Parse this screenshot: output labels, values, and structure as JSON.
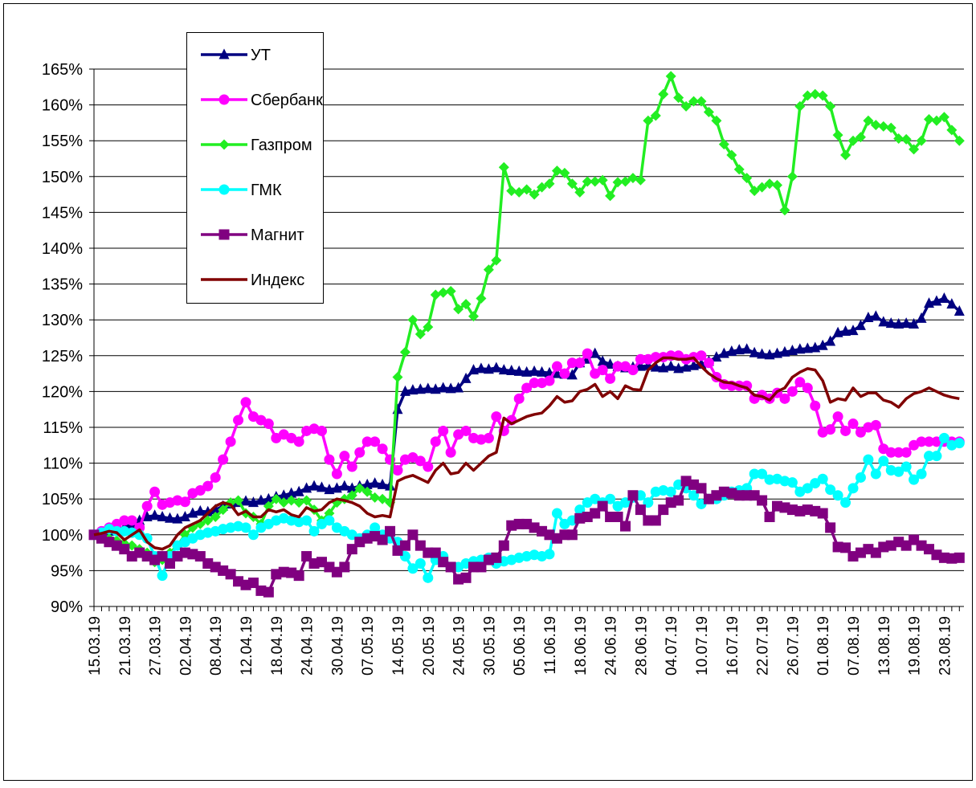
{
  "chart_data": {
    "type": "line",
    "categories": [
      "15.03.19",
      null,
      null,
      null,
      "21.03.19",
      null,
      null,
      null,
      "27.03.19",
      null,
      null,
      null,
      "02.04.19",
      null,
      null,
      null,
      "08.04.19",
      null,
      null,
      null,
      "12.04.19",
      null,
      null,
      null,
      "18.04.19",
      null,
      null,
      null,
      "24.04.19",
      null,
      null,
      null,
      "30.04.19",
      null,
      null,
      null,
      "07.05.19",
      null,
      null,
      null,
      "14.05.19",
      null,
      null,
      null,
      "20.05.19",
      null,
      null,
      null,
      "24.05.19",
      null,
      null,
      null,
      "30.05.19",
      null,
      null,
      null,
      "05.06.19",
      null,
      null,
      null,
      "11.06.19",
      null,
      null,
      null,
      "18.06.19",
      null,
      null,
      null,
      "24.06.19",
      null,
      null,
      null,
      "28.06.19",
      null,
      null,
      null,
      "04.07.19",
      null,
      null,
      null,
      "10.07.19",
      null,
      null,
      null,
      "16.07.19",
      null,
      null,
      null,
      "22.07.19",
      null,
      null,
      null,
      "26.07.19",
      null,
      null,
      null,
      "01.08.19",
      null,
      null,
      null,
      "07.08.19",
      null,
      null,
      null,
      "13.08.19",
      null,
      null,
      null,
      "19.08.19",
      null,
      null,
      null,
      "23.08.19",
      null,
      null
    ],
    "series": [
      {
        "name": "УТ",
        "color": "#000080",
        "marker": "triangle",
        "values": [
          100,
          100.2,
          100.5,
          100.8,
          101,
          101.5,
          102,
          102.5,
          102.7,
          102.5,
          102.3,
          102.2,
          102.5,
          103,
          103.3,
          103.2,
          103.5,
          104,
          104.3,
          104.5,
          104.7,
          104.5,
          104.8,
          105,
          105.3,
          105.5,
          105.8,
          106,
          106.5,
          106.8,
          106.6,
          106.3,
          106.5,
          106.8,
          106.5,
          106.8,
          107,
          107.2,
          107,
          106.8,
          117.5,
          120,
          120.2,
          120.3,
          120.4,
          120.3,
          120.5,
          120.4,
          120.5,
          121.8,
          123,
          123.2,
          123.1,
          123.3,
          123,
          122.9,
          122.8,
          122.7,
          122.8,
          122.7,
          122.6,
          122.5,
          122.4,
          122.3,
          124,
          124.5,
          125.3,
          124.2,
          123.8,
          123.5,
          123.3,
          123.4,
          123.5,
          123.6,
          123.4,
          123.3,
          123.5,
          123.2,
          123.4,
          123.6,
          123.8,
          124.2,
          124.8,
          125.3,
          125.6,
          125.8,
          125.9,
          125.4,
          125.2,
          125.1,
          125.3,
          125.5,
          125.7,
          125.9,
          126,
          126.1,
          126.4,
          127,
          128.2,
          128.4,
          128.5,
          129.2,
          130.3,
          130.5,
          129.7,
          129.5,
          129.4,
          129.5,
          129.4,
          130.2,
          132.3,
          132.6,
          133,
          132.2,
          131.2
        ]
      },
      {
        "name": "Сбербанк",
        "color": "#ff00ff",
        "marker": "circle",
        "values": [
          100,
          100.5,
          101,
          101.5,
          102,
          102,
          101,
          104,
          106,
          104.2,
          104.5,
          104.8,
          104.6,
          105.8,
          106.2,
          106.8,
          108,
          110.5,
          113,
          116,
          118.5,
          116.5,
          116,
          115.5,
          113.5,
          114,
          113.5,
          113,
          114.5,
          114.8,
          114.5,
          110.5,
          108.5,
          111,
          109.5,
          111.5,
          113,
          113,
          112,
          110.5,
          109,
          110.5,
          110.8,
          110.3,
          109.5,
          113,
          114.5,
          111.5,
          114,
          114.5,
          113.5,
          113.3,
          113.5,
          116.5,
          114.5,
          116,
          119,
          120.5,
          121.2,
          121.2,
          121.5,
          123.5,
          122.5,
          124,
          124,
          125.3,
          122.5,
          123,
          121.8,
          123.5,
          123.5,
          123,
          124.5,
          124.5,
          124.8,
          124.8,
          125,
          125,
          124.5,
          124.8,
          125,
          124,
          122,
          121,
          120.8,
          120.8,
          120.8,
          119,
          119.5,
          119,
          119.8,
          119,
          120,
          121.3,
          120.5,
          118,
          114.3,
          114.7,
          116.5,
          114.5,
          115.5,
          114.3,
          115,
          115.3,
          112,
          111.5,
          111.5,
          111.5,
          112.5,
          113,
          113,
          113,
          113,
          113,
          113
        ]
      },
      {
        "name": "Газпром",
        "color": "#22ee22",
        "marker": "diamond",
        "values": [
          100,
          99.7,
          99.5,
          99.2,
          98.8,
          98.5,
          98,
          97.5,
          96.2,
          96.5,
          97.5,
          98.5,
          100,
          101,
          101.5,
          102,
          102.5,
          103.5,
          104.5,
          104.8,
          103,
          102.5,
          101.5,
          104,
          105,
          104.5,
          104.8,
          104.5,
          104.8,
          103.5,
          102,
          103,
          104.5,
          105,
          105.5,
          106.5,
          106,
          105.2,
          105,
          104.5,
          122,
          125.5,
          130,
          128,
          129,
          133.5,
          133.8,
          134,
          131.5,
          132.2,
          130.5,
          133,
          137,
          138.3,
          151.3,
          148,
          147.8,
          148.2,
          147.5,
          148.5,
          149,
          150.8,
          150.5,
          149,
          147.8,
          149.3,
          149.3,
          149.5,
          147.3,
          149.2,
          149.3,
          149.8,
          149.5,
          157.8,
          158.5,
          161.5,
          164,
          161,
          159.8,
          160.5,
          160.5,
          159,
          157.8,
          154.5,
          153,
          151,
          149.8,
          148,
          148.5,
          149,
          148.8,
          145.3,
          150,
          159.8,
          161.3,
          161.5,
          161.3,
          159.8,
          155.8,
          153,
          155,
          155.5,
          157.8,
          157.2,
          157,
          156.8,
          155.3,
          155.2,
          153.8,
          155,
          158,
          157.8,
          158.3,
          156.5,
          155
        ]
      },
      {
        "name": "ГМК",
        "color": "#00ffff",
        "marker": "circle",
        "values": [
          100,
          100.3,
          100.8,
          100.5,
          100.5,
          100.3,
          100,
          99.5,
          97,
          94.3,
          97,
          98.5,
          99,
          99.5,
          100,
          100.3,
          100.5,
          100.8,
          101,
          101.2,
          101,
          100,
          101,
          101.5,
          102,
          102.3,
          102,
          101.8,
          102,
          100.5,
          101.5,
          102,
          101,
          100.5,
          100,
          99.5,
          100,
          101,
          100,
          99.5,
          99,
          97,
          95.3,
          96,
          94,
          96.5,
          97,
          95.5,
          95.5,
          96,
          96.3,
          96.5,
          96.8,
          96,
          96.3,
          96.5,
          96.8,
          97,
          97.2,
          97,
          97.3,
          103,
          101.5,
          102,
          103.5,
          104.5,
          105,
          104.5,
          105,
          104,
          104.5,
          105.2,
          105.5,
          104.5,
          106,
          106.2,
          106,
          107,
          106.5,
          105.5,
          104.3,
          105,
          105,
          105.5,
          106,
          106.2,
          106.5,
          108.5,
          108.5,
          107.7,
          107.8,
          107.5,
          107.3,
          106,
          106.5,
          107.2,
          107.8,
          106.3,
          105.5,
          104.5,
          106.5,
          108,
          110.5,
          108.5,
          110.3,
          109,
          108.8,
          109.5,
          107.7,
          108.5,
          111,
          111,
          113.5,
          112.5,
          112.8
        ]
      },
      {
        "name": "Магнит",
        "color": "#800080",
        "marker": "square",
        "values": [
          100,
          99.5,
          99,
          98.5,
          98,
          97,
          97.5,
          97,
          96.5,
          97,
          96,
          97,
          97.5,
          97.3,
          97,
          96,
          95.5,
          95,
          94.5,
          93.5,
          93,
          93.3,
          92.2,
          92,
          94.5,
          94.8,
          94.7,
          94.3,
          97,
          96,
          96.2,
          95.5,
          94.8,
          95.5,
          98,
          99,
          99.5,
          99.8,
          99.3,
          100.5,
          97.8,
          98.5,
          100,
          98.5,
          97.5,
          97.5,
          96.2,
          95.5,
          93.8,
          94,
          95.5,
          95.5,
          96.5,
          96.8,
          98.5,
          101.3,
          101.5,
          101.5,
          101,
          100.5,
          100,
          99.5,
          100,
          100,
          102.3,
          102.5,
          103,
          104,
          102.5,
          102.5,
          101.2,
          105.5,
          103.5,
          102,
          102,
          103.5,
          104.5,
          104.8,
          107.5,
          107,
          106.5,
          105,
          105.5,
          106,
          105.8,
          105.5,
          105.5,
          105.5,
          104.8,
          102.5,
          104,
          103.8,
          103.5,
          103.3,
          103.5,
          103.3,
          103,
          101,
          98.3,
          98.2,
          97,
          97.5,
          98,
          97.5,
          98.3,
          98.5,
          99,
          98.5,
          99.3,
          98.5,
          98,
          97.2,
          96.8,
          96.7,
          96.8
        ]
      },
      {
        "name": "Индекс",
        "color": "#800000",
        "marker": "none",
        "values": [
          100,
          100.2,
          100.5,
          100.3,
          99.3,
          100,
          100.7,
          99,
          98.2,
          98,
          98.5,
          100,
          101,
          101.5,
          102,
          103,
          104,
          104.5,
          104.2,
          102.8,
          103.3,
          102.5,
          102.5,
          103.5,
          103.2,
          103.5,
          102.8,
          102.5,
          103.8,
          103.3,
          103.5,
          104.5,
          105,
          104.8,
          104.5,
          104,
          103,
          102.5,
          102.7,
          102.5,
          107.5,
          108,
          108.3,
          107.8,
          107.3,
          109,
          110,
          108.5,
          108.7,
          110,
          109,
          110,
          111,
          111.5,
          116.3,
          115.5,
          116,
          116.5,
          116.8,
          117,
          118,
          119.3,
          118.5,
          118.7,
          120,
          120.3,
          121,
          119.3,
          120,
          119,
          120.8,
          120.3,
          120.2,
          123,
          124,
          124.7,
          124.7,
          124.5,
          124.5,
          124.7,
          123.5,
          122.5,
          121.8,
          121.3,
          121.2,
          120.8,
          120.5,
          119.5,
          119.3,
          118.8,
          120,
          120.5,
          122,
          122.7,
          123.2,
          123,
          121.5,
          118.5,
          119,
          118.8,
          120.5,
          119.3,
          119.8,
          119.8,
          118.8,
          118.5,
          117.8,
          119,
          119.7,
          120,
          120.5,
          120,
          119.5,
          119.2,
          119
        ]
      }
    ],
    "ylim": [
      90,
      165
    ],
    "yticks": [
      {
        "value": 90,
        "label": "90%"
      },
      {
        "value": 95,
        "label": "95%"
      },
      {
        "value": 100,
        "label": "100%"
      },
      {
        "value": 105,
        "label": "105%"
      },
      {
        "value": 110,
        "label": "110%"
      },
      {
        "value": 115,
        "label": "115%"
      },
      {
        "value": 120,
        "label": "120%"
      },
      {
        "value": 125,
        "label": "125%"
      },
      {
        "value": 130,
        "label": "130%"
      },
      {
        "value": 135,
        "label": "135%"
      },
      {
        "value": 140,
        "label": "140%"
      },
      {
        "value": 145,
        "label": "145%"
      },
      {
        "value": 150,
        "label": "150%"
      },
      {
        "value": 155,
        "label": "155%"
      },
      {
        "value": 160,
        "label": "160%"
      },
      {
        "value": 165,
        "label": "165%"
      }
    ],
    "grid": true,
    "legend": "upper left"
  }
}
